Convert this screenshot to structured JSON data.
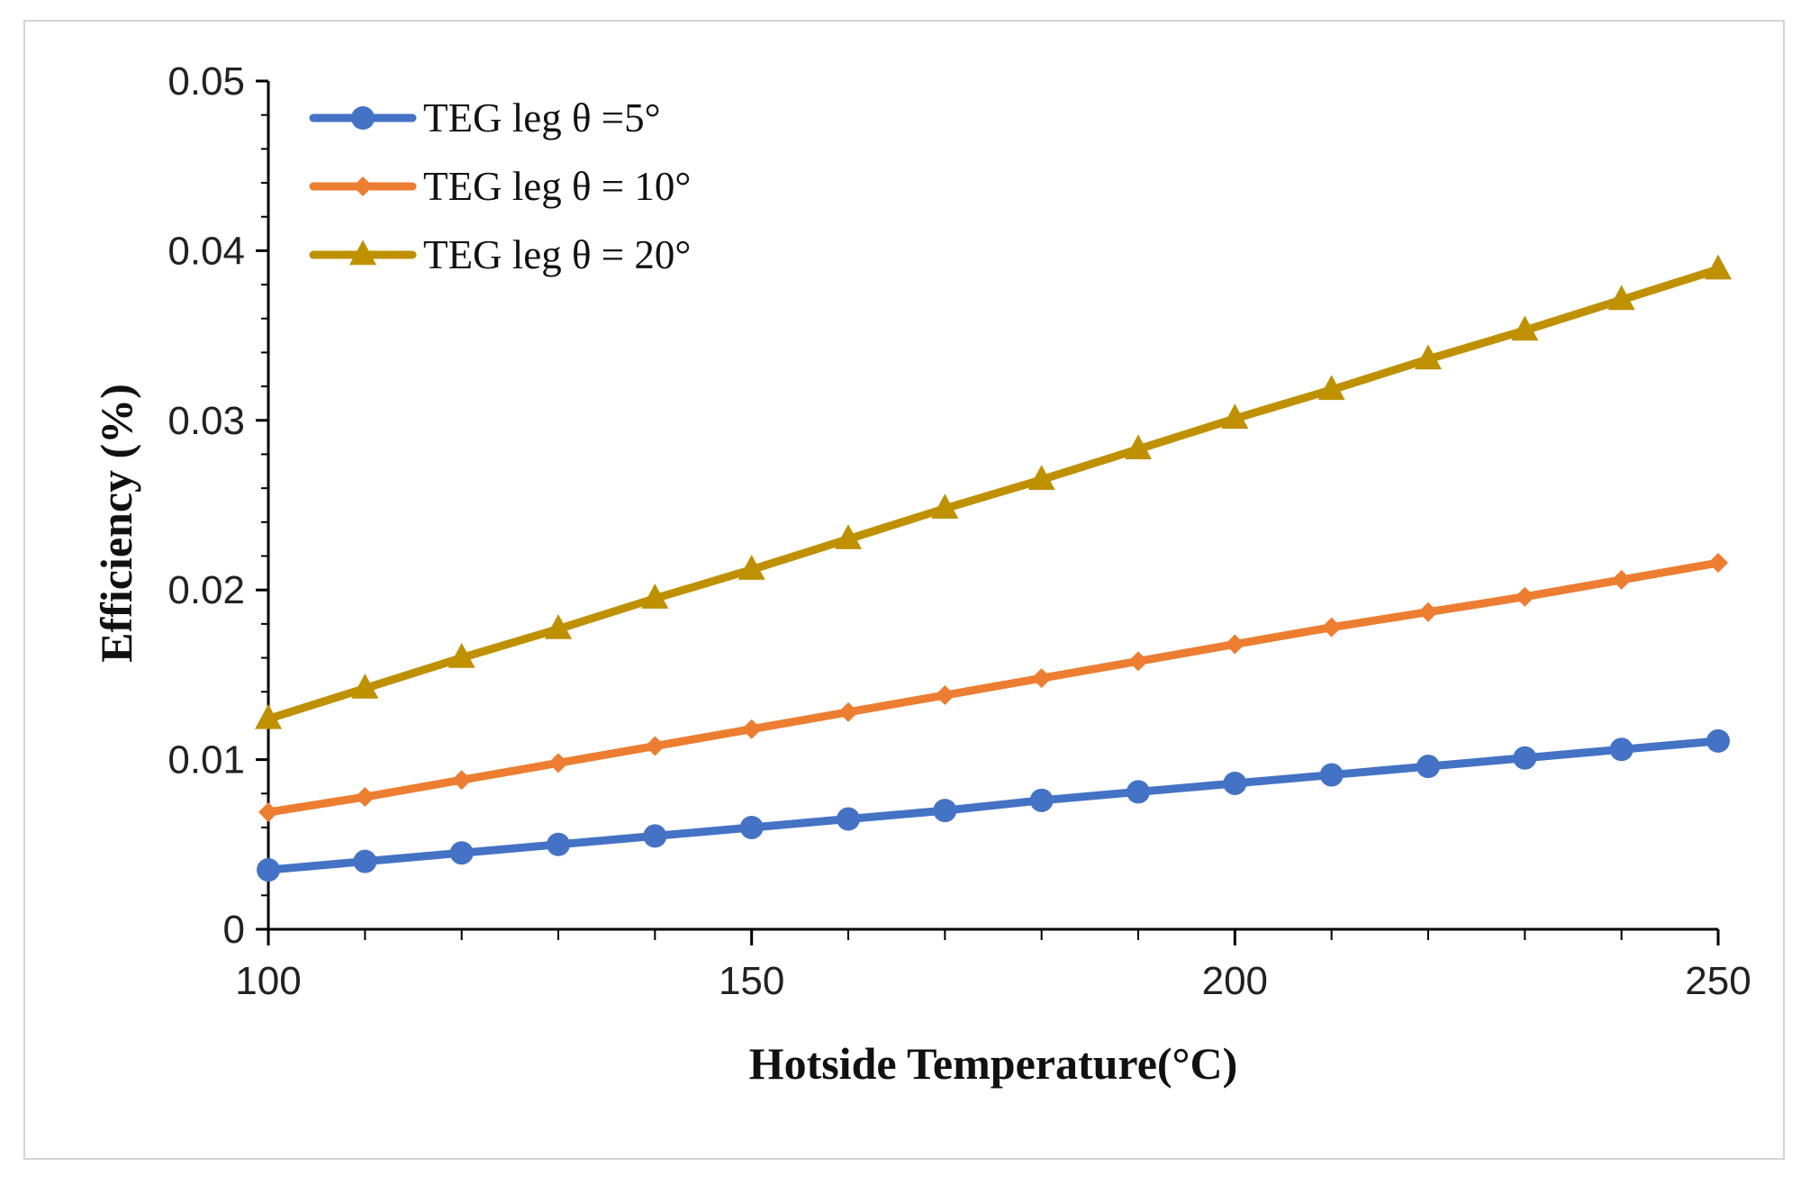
{
  "chart_data": {
    "type": "line",
    "xlabel": "Hotside Temperature(°C)",
    "ylabel": "Efficiency (%)",
    "xlim": [
      100,
      250
    ],
    "ylim": [
      0,
      0.05
    ],
    "x_ticks": [
      "100",
      "150",
      "200",
      "250"
    ],
    "y_ticks": [
      "0",
      "0.01",
      "0.02",
      "0.03",
      "0.04",
      "0.05"
    ],
    "legend_position": "top-left",
    "x": [
      100,
      110,
      120,
      130,
      140,
      150,
      160,
      170,
      180,
      190,
      200,
      210,
      220,
      230,
      240,
      250
    ],
    "series": [
      {
        "name": "TEG leg θ =5°",
        "color": "#4472c4",
        "marker": "circle",
        "values": [
          0.0035,
          0.004,
          0.0045,
          0.005,
          0.0055,
          0.006,
          0.0065,
          0.007,
          0.0076,
          0.0081,
          0.0086,
          0.0091,
          0.0096,
          0.0101,
          0.0106,
          0.0111
        ]
      },
      {
        "name": "TEG leg θ = 10°",
        "color": "#ed7d31",
        "marker": "diamond",
        "values": [
          0.0069,
          0.0078,
          0.0088,
          0.0098,
          0.0108,
          0.0118,
          0.0128,
          0.0138,
          0.0148,
          0.0158,
          0.0168,
          0.0178,
          0.0187,
          0.0196,
          0.0206,
          0.0216
        ]
      },
      {
        "name": "TEG leg θ = 20°",
        "color": "#bf9000",
        "marker": "triangle",
        "values": [
          0.0124,
          0.0142,
          0.016,
          0.0177,
          0.0195,
          0.0212,
          0.023,
          0.0248,
          0.0265,
          0.0283,
          0.0301,
          0.0318,
          0.0336,
          0.0353,
          0.0371,
          0.0389
        ]
      }
    ]
  }
}
